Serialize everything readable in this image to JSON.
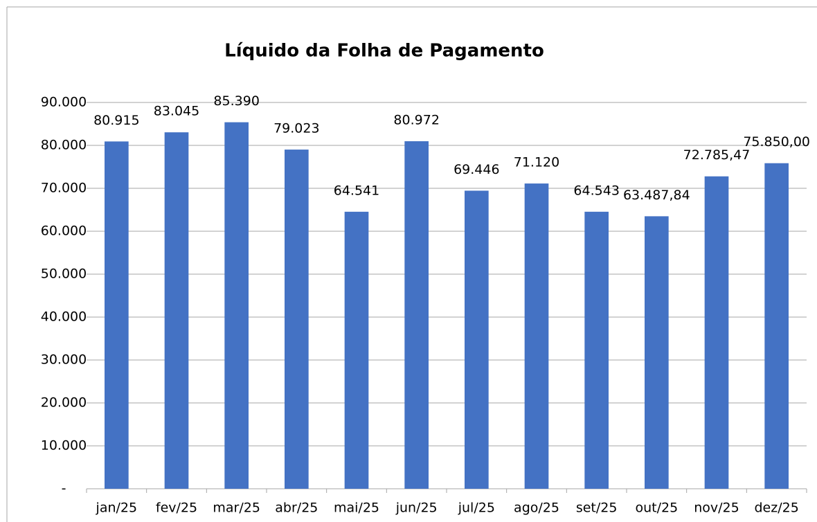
{
  "chart_data": {
    "type": "bar",
    "title": "Líquido da Folha de Pagamento",
    "categories": [
      "jan/25",
      "fev/25",
      "mar/25",
      "abr/25",
      "mai/25",
      "jun/25",
      "jul/25",
      "ago/25",
      "set/25",
      "out/25",
      "nov/25",
      "dez/25"
    ],
    "values": [
      80915,
      83045,
      85390,
      79023,
      64541,
      80972,
      69446,
      71120,
      64543,
      63487.84,
      72785.47,
      75850
    ],
    "value_labels": [
      "80.915",
      "83.045",
      "85.390",
      "79.023",
      "64.541",
      "80.972",
      "69.446",
      "71.120",
      "64.543",
      "63.487,84",
      "72.785,47",
      "75.850,00"
    ],
    "color": "#4472c4",
    "ylim": [
      0,
      90000
    ],
    "yticks": [
      {
        "value": 0,
        "label": "-"
      },
      {
        "value": 10000,
        "label": "10.000"
      },
      {
        "value": 20000,
        "label": "20.000"
      },
      {
        "value": 30000,
        "label": "30.000"
      },
      {
        "value": 40000,
        "label": "40.000"
      },
      {
        "value": 50000,
        "label": "50.000"
      },
      {
        "value": 60000,
        "label": "60.000"
      },
      {
        "value": 70000,
        "label": "70.000"
      },
      {
        "value": 80000,
        "label": "80.000"
      },
      {
        "value": 90000,
        "label": "90.000"
      }
    ],
    "grid": true
  }
}
